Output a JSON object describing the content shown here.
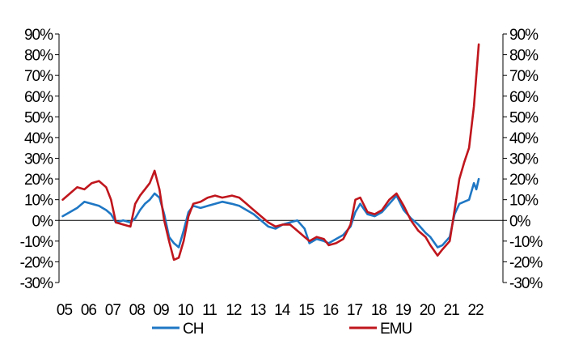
{
  "chart_data": {
    "type": "line",
    "title": "",
    "xlabel": "",
    "ylabel": "",
    "ylim": [
      -30,
      90
    ],
    "y_unit": "%",
    "y_ticks": [
      90,
      80,
      70,
      60,
      50,
      40,
      30,
      20,
      10,
      0,
      -10,
      -20,
      -30
    ],
    "y_tick_labels": [
      "90%",
      "80%",
      "70%",
      "60%",
      "50%",
      "40%",
      "30%",
      "20%",
      "10%",
      "0%",
      "-10%",
      "-20%",
      "-30%"
    ],
    "x_ticks": [
      2005,
      2006,
      2007,
      2008,
      2009,
      2010,
      2011,
      2012,
      2013,
      2014,
      2015,
      2016,
      2017,
      2018,
      2019,
      2020,
      2021,
      2022
    ],
    "x_tick_labels": [
      "05",
      "06",
      "07",
      "08",
      "09",
      "10",
      "11",
      "12",
      "13",
      "14",
      "15",
      "16",
      "17",
      "18",
      "19",
      "20",
      "21",
      "22"
    ],
    "zero_line": true,
    "grid": false,
    "dual_y_axis": true,
    "legend_position": "bottom",
    "series": [
      {
        "name": "CH",
        "color": "#1f77c4",
        "points": [
          [
            2005.0,
            2
          ],
          [
            2005.3,
            4
          ],
          [
            2005.6,
            6
          ],
          [
            2005.9,
            9
          ],
          [
            2006.2,
            8
          ],
          [
            2006.5,
            7
          ],
          [
            2006.8,
            5
          ],
          [
            2007.0,
            3
          ],
          [
            2007.2,
            -1
          ],
          [
            2007.5,
            0
          ],
          [
            2007.8,
            -1
          ],
          [
            2008.0,
            1
          ],
          [
            2008.2,
            5
          ],
          [
            2008.4,
            8
          ],
          [
            2008.6,
            10
          ],
          [
            2008.8,
            13
          ],
          [
            2009.0,
            11
          ],
          [
            2009.2,
            3
          ],
          [
            2009.4,
            -8
          ],
          [
            2009.6,
            -11
          ],
          [
            2009.8,
            -13
          ],
          [
            2010.0,
            -5
          ],
          [
            2010.2,
            4
          ],
          [
            2010.4,
            7
          ],
          [
            2010.7,
            6
          ],
          [
            2011.0,
            7
          ],
          [
            2011.3,
            8
          ],
          [
            2011.6,
            9
          ],
          [
            2012.0,
            8
          ],
          [
            2012.3,
            7
          ],
          [
            2012.6,
            5
          ],
          [
            2012.9,
            3
          ],
          [
            2013.2,
            0
          ],
          [
            2013.5,
            -3
          ],
          [
            2013.8,
            -4
          ],
          [
            2014.1,
            -2
          ],
          [
            2014.4,
            -1
          ],
          [
            2014.7,
            0
          ],
          [
            2015.0,
            -4
          ],
          [
            2015.2,
            -11
          ],
          [
            2015.5,
            -9
          ],
          [
            2015.8,
            -10
          ],
          [
            2016.0,
            -11
          ],
          [
            2016.3,
            -9
          ],
          [
            2016.6,
            -7
          ],
          [
            2016.9,
            -3
          ],
          [
            2017.1,
            4
          ],
          [
            2017.3,
            8
          ],
          [
            2017.6,
            3
          ],
          [
            2017.9,
            2
          ],
          [
            2018.2,
            4
          ],
          [
            2018.5,
            8
          ],
          [
            2018.8,
            12
          ],
          [
            2019.1,
            5
          ],
          [
            2019.4,
            1
          ],
          [
            2019.7,
            -2
          ],
          [
            2020.0,
            -6
          ],
          [
            2020.2,
            -8
          ],
          [
            2020.5,
            -13
          ],
          [
            2020.7,
            -12
          ],
          [
            2021.0,
            -8
          ],
          [
            2021.2,
            3
          ],
          [
            2021.4,
            8
          ],
          [
            2021.6,
            9
          ],
          [
            2021.8,
            10
          ],
          [
            2022.0,
            18
          ],
          [
            2022.1,
            15
          ],
          [
            2022.2,
            20
          ]
        ]
      },
      {
        "name": "EMU",
        "color": "#c0161d",
        "points": [
          [
            2005.0,
            10
          ],
          [
            2005.3,
            13
          ],
          [
            2005.6,
            16
          ],
          [
            2005.9,
            15
          ],
          [
            2006.2,
            18
          ],
          [
            2006.5,
            19
          ],
          [
            2006.8,
            16
          ],
          [
            2007.0,
            10
          ],
          [
            2007.2,
            -1
          ],
          [
            2007.5,
            -2
          ],
          [
            2007.8,
            -3
          ],
          [
            2008.0,
            8
          ],
          [
            2008.2,
            12
          ],
          [
            2008.4,
            15
          ],
          [
            2008.6,
            18
          ],
          [
            2008.8,
            24
          ],
          [
            2009.0,
            15
          ],
          [
            2009.2,
            0
          ],
          [
            2009.4,
            -10
          ],
          [
            2009.6,
            -19
          ],
          [
            2009.8,
            -18
          ],
          [
            2010.0,
            -10
          ],
          [
            2010.2,
            2
          ],
          [
            2010.4,
            8
          ],
          [
            2010.7,
            9
          ],
          [
            2011.0,
            11
          ],
          [
            2011.3,
            12
          ],
          [
            2011.6,
            11
          ],
          [
            2012.0,
            12
          ],
          [
            2012.3,
            11
          ],
          [
            2012.6,
            8
          ],
          [
            2012.9,
            5
          ],
          [
            2013.2,
            2
          ],
          [
            2013.5,
            -1
          ],
          [
            2013.8,
            -3
          ],
          [
            2014.1,
            -2
          ],
          [
            2014.4,
            -2
          ],
          [
            2014.7,
            -5
          ],
          [
            2015.0,
            -8
          ],
          [
            2015.2,
            -10
          ],
          [
            2015.5,
            -8
          ],
          [
            2015.8,
            -9
          ],
          [
            2016.0,
            -12
          ],
          [
            2016.3,
            -11
          ],
          [
            2016.6,
            -9
          ],
          [
            2016.9,
            -2
          ],
          [
            2017.1,
            10
          ],
          [
            2017.3,
            11
          ],
          [
            2017.6,
            4
          ],
          [
            2017.9,
            3
          ],
          [
            2018.2,
            5
          ],
          [
            2018.5,
            10
          ],
          [
            2018.8,
            13
          ],
          [
            2019.1,
            7
          ],
          [
            2019.4,
            0
          ],
          [
            2019.7,
            -5
          ],
          [
            2020.0,
            -8
          ],
          [
            2020.2,
            -12
          ],
          [
            2020.5,
            -17
          ],
          [
            2020.7,
            -14
          ],
          [
            2021.0,
            -10
          ],
          [
            2021.2,
            5
          ],
          [
            2021.4,
            20
          ],
          [
            2021.6,
            28
          ],
          [
            2021.8,
            35
          ],
          [
            2022.0,
            55
          ],
          [
            2022.1,
            70
          ],
          [
            2022.2,
            85
          ]
        ]
      }
    ]
  }
}
